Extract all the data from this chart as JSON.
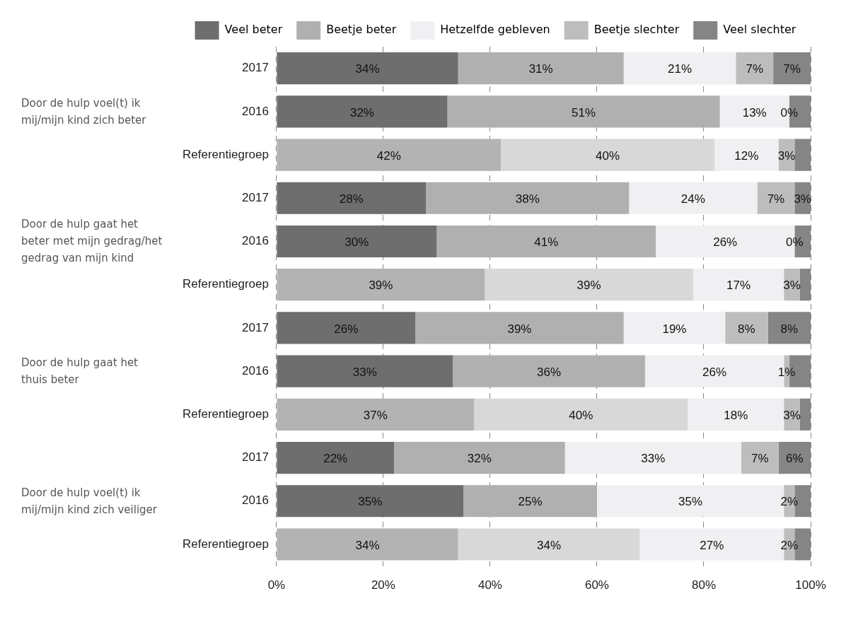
{
  "chart_data": {
    "type": "bar",
    "orientation": "horizontal",
    "stacked": true,
    "categories": [
      "2017",
      "2016",
      "Referentiegroep",
      "2017",
      "2016",
      "Referentiegroep",
      "2017",
      "2016",
      "Referentiegroep",
      "2017",
      "2016",
      "Referentiegroep"
    ],
    "series": [
      {
        "name": "Veel beter",
        "color": "#6e6e6e",
        "colors": [
          "#6e6e6e",
          "#6e6e6e",
          "#b3b3b3",
          "#6e6e6e",
          "#6e6e6e",
          "#b3b3b3",
          "#6e6e6e",
          "#6e6e6e",
          "#b3b3b3",
          "#6e6e6e",
          "#6e6e6e",
          "#b3b3b3"
        ],
        "values": [
          34,
          32,
          42,
          28,
          30,
          39,
          26,
          33,
          37,
          22,
          35,
          34
        ],
        "value_labels": [
          "34%",
          "32%",
          "42%",
          "28%",
          "30%",
          "39%",
          "26%",
          "33%",
          "37%",
          "22%",
          "35%",
          "34%"
        ]
      },
      {
        "name": "Beetje beter",
        "color": "#b0b0b0",
        "colors": [
          "#b0b0b0",
          "#b0b0b0",
          "#d8d8d8",
          "#b0b0b0",
          "#b0b0b0",
          "#d8d8d8",
          "#b0b0b0",
          "#b0b0b0",
          "#d8d8d8",
          "#b0b0b0",
          "#b0b0b0",
          "#d8d8d8"
        ],
        "values": [
          31,
          51,
          40,
          38,
          41,
          39,
          39,
          36,
          40,
          32,
          25,
          34
        ],
        "value_labels": [
          "31%",
          "51%",
          "40%",
          "38%",
          "41%",
          "39%",
          "39%",
          "36%",
          "40%",
          "32%",
          "25%",
          "34%"
        ]
      },
      {
        "name": "Hetzelfde gebleven",
        "color": "#f0f0f3",
        "values": [
          21,
          13,
          12,
          24,
          26,
          17,
          19,
          26,
          18,
          33,
          35,
          27
        ],
        "value_labels": [
          "21%",
          "13%",
          "12%",
          "24%",
          "26%",
          "17%",
          "19%",
          "26%",
          "18%",
          "33%",
          "35%",
          "27%"
        ]
      },
      {
        "name": "Beetje slechter",
        "color": "#bdbdbd",
        "values": [
          7,
          0,
          3,
          7,
          0,
          3,
          8,
          1,
          3,
          7,
          2,
          2
        ],
        "value_labels": [
          "7%",
          "0%",
          "3%",
          "7%",
          "0%",
          "3%",
          "8%",
          "1%",
          "3%",
          "7%",
          "2%",
          "2%"
        ]
      },
      {
        "name": "Veel slechter",
        "color": "#858585",
        "values": [
          7,
          4,
          3,
          3,
          3,
          2,
          8,
          4,
          2,
          6,
          3,
          3
        ],
        "value_labels": [
          "7%",
          null,
          null,
          "3%",
          null,
          null,
          "8%",
          null,
          null,
          "6%",
          null,
          null
        ]
      }
    ],
    "xlim": [
      0,
      100
    ],
    "xticks": [
      {
        "value": 0,
        "label": "0%"
      },
      {
        "value": 20,
        "label": "20%"
      },
      {
        "value": 40,
        "label": "40%"
      },
      {
        "value": 60,
        "label": "60%"
      },
      {
        "value": 80,
        "label": "80%"
      },
      {
        "value": 100,
        "label": "100%"
      }
    ],
    "grid": "x",
    "legend": "top",
    "annotations": [
      "Door de hulp voel(t) ik mij/mijn kind zich beter",
      "Door de hulp gaat het beter met mijn gedrag/het gedrag van mijn kind",
      "Door de hulp gaat het thuis beter",
      "Door de hulp voel(t) ik mij/mijn kind zich veiliger"
    ]
  }
}
